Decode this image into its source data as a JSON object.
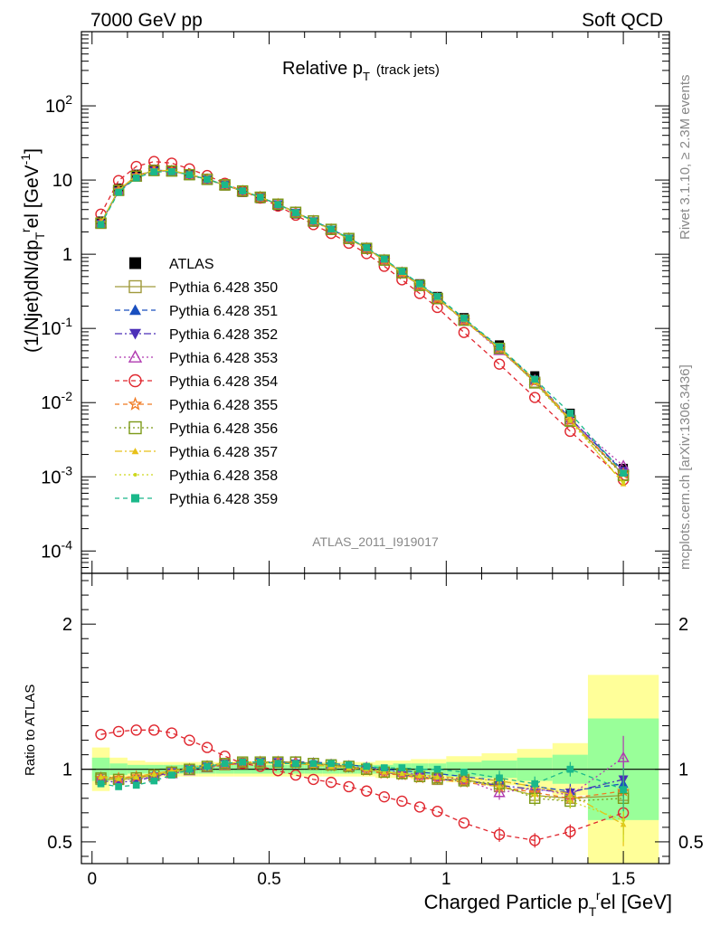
{
  "header": {
    "left_label": "7000 GeV pp",
    "right_label": "Soft QCD"
  },
  "side_text": {
    "rivet": "Rivet 3.1.10, ≥ 2.3M events",
    "mcplots": "mcplots.cern.ch [arXiv:1306.3436]"
  },
  "chart_data": {
    "type": "line",
    "title_main": "Relative p",
    "title_sub": "T",
    "title_paren": "(track jets)",
    "analysis_label": "ATLAS_2011_I919017",
    "ylabel": "(1/Njet)dN/dp_T^rel [GeV^-1]",
    "ylabel_parts": [
      "(1/Njet)dN/dp",
      "T",
      "r",
      "el [GeV",
      "-1",
      "]"
    ],
    "xlabel_parts": [
      "Charged Particle p",
      "T",
      "r",
      "el [GeV]"
    ],
    "ratio_ylabel": "Ratio to ATLAS",
    "xlim": [
      -0.03,
      1.63
    ],
    "ylim_log": [
      5e-05,
      1000
    ],
    "ratio_ylim": [
      0.35,
      2.35
    ],
    "x_ticks": [
      "0",
      "0.5",
      "1",
      "1.5"
    ],
    "x_tick_values": [
      0,
      0.5,
      1,
      1.5
    ],
    "y_ticks": [
      {
        "value": 0.0001,
        "base": "10",
        "exp": "-4"
      },
      {
        "value": 0.001,
        "base": "10",
        "exp": "-3"
      },
      {
        "value": 0.01,
        "base": "10",
        "exp": "-2"
      },
      {
        "value": 0.1,
        "base": "10",
        "exp": "-1"
      },
      {
        "value": 1,
        "base": "1",
        "exp": ""
      },
      {
        "value": 10,
        "base": "10",
        "exp": ""
      },
      {
        "value": 100,
        "base": "10",
        "exp": "2"
      }
    ],
    "ratio_ticks": [
      "0.5",
      "1",
      "2"
    ],
    "ratio_tick_values": [
      0.5,
      1,
      2
    ],
    "x": [
      0.025,
      0.075,
      0.125,
      0.175,
      0.225,
      0.275,
      0.325,
      0.375,
      0.425,
      0.475,
      0.525,
      0.575,
      0.625,
      0.675,
      0.725,
      0.775,
      0.825,
      0.875,
      0.925,
      0.975,
      1.05,
      1.15,
      1.25,
      1.35,
      1.5
    ],
    "x_edges": [
      0,
      0.05,
      0.1,
      0.15,
      0.2,
      0.25,
      0.3,
      0.35,
      0.4,
      0.45,
      0.5,
      0.55,
      0.6,
      0.65,
      0.7,
      0.75,
      0.8,
      0.85,
      0.9,
      0.95,
      1.0,
      1.1,
      1.2,
      1.3,
      1.4,
      1.6
    ],
    "atlas": [
      2.8,
      7.8,
      12.0,
      14.0,
      13.5,
      11.8,
      10.0,
      8.3,
      6.8,
      5.6,
      4.5,
      3.5,
      2.7,
      2.1,
      1.6,
      1.2,
      0.85,
      0.58,
      0.4,
      0.27,
      0.14,
      0.06,
      0.023,
      0.0072,
      0.0013
    ],
    "band_green": [
      0.08,
      0.04,
      0.03,
      0.03,
      0.03,
      0.03,
      0.03,
      0.03,
      0.03,
      0.03,
      0.03,
      0.03,
      0.03,
      0.03,
      0.03,
      0.03,
      0.03,
      0.04,
      0.04,
      0.04,
      0.05,
      0.06,
      0.08,
      0.1,
      0.35
    ],
    "band_yellow": [
      0.15,
      0.08,
      0.06,
      0.05,
      0.05,
      0.05,
      0.05,
      0.05,
      0.05,
      0.05,
      0.05,
      0.05,
      0.05,
      0.05,
      0.05,
      0.05,
      0.06,
      0.06,
      0.07,
      0.07,
      0.09,
      0.11,
      0.14,
      0.18,
      0.65
    ],
    "series": [
      {
        "name": "ATLAS",
        "color": "#000000",
        "marker": "square-filled",
        "dash": "",
        "ratio": [
          1,
          1,
          1,
          1,
          1,
          1,
          1,
          1,
          1,
          1,
          1,
          1,
          1,
          1,
          1,
          1,
          1,
          1,
          1,
          1,
          1,
          1,
          1,
          1,
          1
        ]
      },
      {
        "name": "Pythia 6.428 350",
        "color": "#a09a3c",
        "marker": "square-open",
        "dash": "",
        "ratio": [
          0.93,
          0.93,
          0.94,
          0.96,
          0.98,
          1.0,
          1.02,
          1.03,
          1.04,
          1.04,
          1.05,
          1.05,
          1.04,
          1.03,
          1.02,
          1.0,
          0.98,
          0.97,
          0.95,
          0.93,
          0.93,
          0.88,
          0.82,
          0.8,
          0.82
        ]
      },
      {
        "name": "Pythia 6.428 351",
        "color": "#1a4fbf",
        "marker": "triangle-up-filled",
        "dash": "6,4",
        "ratio": [
          0.95,
          0.94,
          0.95,
          0.97,
          0.99,
          1.01,
          1.03,
          1.04,
          1.05,
          1.05,
          1.05,
          1.05,
          1.05,
          1.04,
          1.03,
          1.02,
          1.0,
          0.99,
          0.98,
          0.97,
          0.95,
          0.92,
          0.88,
          0.85,
          0.9
        ]
      },
      {
        "name": "Pythia 6.428 352",
        "color": "#4b2fb8",
        "marker": "triangle-down-filled",
        "dash": "8,3,2,3",
        "ratio": [
          0.92,
          0.91,
          0.92,
          0.95,
          0.98,
          1.0,
          1.02,
          1.04,
          1.04,
          1.05,
          1.05,
          1.04,
          1.03,
          1.02,
          1.01,
          1.0,
          0.98,
          0.96,
          0.95,
          0.93,
          0.92,
          0.89,
          0.86,
          0.84,
          0.93
        ]
      },
      {
        "name": "Pythia 6.428 353",
        "color": "#b03ab0",
        "marker": "triangle-up-open",
        "dash": "2,3",
        "ratio": [
          0.94,
          0.93,
          0.93,
          0.95,
          0.97,
          0.99,
          1.01,
          1.03,
          1.04,
          1.05,
          1.05,
          1.05,
          1.04,
          1.03,
          1.02,
          1.01,
          0.99,
          0.98,
          0.96,
          0.95,
          0.93,
          0.84,
          0.87,
          0.82,
          1.08
        ]
      },
      {
        "name": "Pythia 6.428 354",
        "color": "#e0262e",
        "marker": "circle-open",
        "dash": "5,4",
        "ratio": [
          1.24,
          1.26,
          1.27,
          1.27,
          1.25,
          1.2,
          1.15,
          1.09,
          1.04,
          1.02,
          0.99,
          0.96,
          0.93,
          0.91,
          0.88,
          0.85,
          0.81,
          0.78,
          0.74,
          0.71,
          0.63,
          0.55,
          0.51,
          0.57,
          0.7
        ]
      },
      {
        "name": "Pythia 6.428 355",
        "color": "#f07a22",
        "marker": "star-open",
        "dash": "5,4",
        "ratio": [
          0.94,
          0.94,
          0.95,
          0.96,
          0.98,
          1.0,
          1.02,
          1.03,
          1.04,
          1.05,
          1.05,
          1.04,
          1.03,
          1.02,
          1.01,
          0.99,
          0.97,
          0.96,
          0.94,
          0.93,
          0.91,
          0.88,
          0.84,
          0.8,
          0.85
        ]
      },
      {
        "name": "Pythia 6.428 356",
        "color": "#7c9a18",
        "marker": "square-open",
        "dash": "2,3",
        "ratio": [
          0.94,
          0.93,
          0.94,
          0.96,
          0.98,
          1.0,
          1.02,
          1.04,
          1.05,
          1.05,
          1.05,
          1.05,
          1.04,
          1.03,
          1.02,
          1.0,
          0.98,
          0.97,
          0.95,
          0.94,
          0.92,
          0.9,
          0.8,
          0.78,
          0.8
        ]
      },
      {
        "name": "Pythia 6.428 357",
        "color": "#e8c018",
        "marker": "triangle-up-small",
        "dash": "8,3,2,3",
        "ratio": [
          0.95,
          0.94,
          0.95,
          0.97,
          0.99,
          1.01,
          1.03,
          1.04,
          1.05,
          1.05,
          1.04,
          1.04,
          1.03,
          1.02,
          1.01,
          1.0,
          0.98,
          0.97,
          0.96,
          0.95,
          0.94,
          0.92,
          0.88,
          0.83,
          0.62
        ]
      },
      {
        "name": "Pythia 6.428 358",
        "color": "#cdd81c",
        "marker": "dot-small",
        "dash": "2,3",
        "ratio": [
          0.94,
          0.93,
          0.94,
          0.96,
          0.98,
          1.0,
          1.02,
          1.04,
          1.05,
          1.05,
          1.04,
          1.04,
          1.03,
          1.02,
          1.01,
          1.0,
          0.98,
          0.97,
          0.95,
          0.94,
          0.92,
          0.88,
          0.82,
          0.78,
          0.65
        ]
      },
      {
        "name": "Pythia 6.428 359",
        "color": "#1ab88a",
        "marker": "square-filled-small",
        "dash": "5,4",
        "ratio": [
          0.9,
          0.88,
          0.89,
          0.92,
          0.96,
          1.0,
          1.02,
          1.04,
          1.05,
          1.05,
          1.04,
          1.04,
          1.04,
          1.04,
          1.03,
          1.02,
          1.01,
          1.01,
          1.0,
          1.0,
          0.98,
          0.94,
          0.9,
          1.0,
          0.86
        ]
      }
    ]
  }
}
